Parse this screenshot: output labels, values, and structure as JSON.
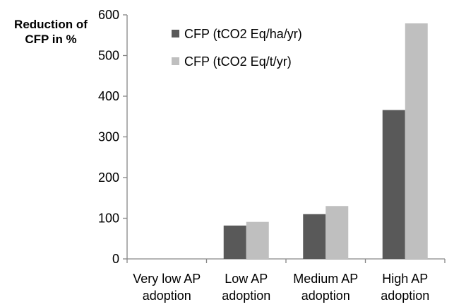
{
  "chart_data": {
    "type": "bar",
    "ylabel_lines": [
      "Reduction of",
      "CFP in %"
    ],
    "categories": [
      [
        "Very low AP",
        "adoption"
      ],
      [
        "Low AP",
        "adoption"
      ],
      [
        "Medium AP",
        "adoption"
      ],
      [
        "High AP",
        "adoption"
      ]
    ],
    "series": [
      {
        "name": "CFP (tCO2 Eq/ha/yr)",
        "color": "#595959",
        "values": [
          0,
          82,
          110,
          366
        ]
      },
      {
        "name": "CFP (tCO2 Eq/t/yr)",
        "color": "#bfbfbf",
        "values": [
          0,
          91,
          130,
          579
        ]
      }
    ],
    "ylim": [
      0,
      600
    ],
    "yticks": [
      0,
      100,
      200,
      300,
      400,
      500,
      600
    ],
    "legend_position": "top-left",
    "grid": false
  }
}
